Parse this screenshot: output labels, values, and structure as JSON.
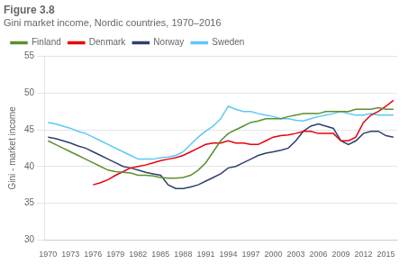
{
  "chart_data": {
    "type": "line",
    "title": "Figure 3.8",
    "subtitle": "Gini market income, Nordic countries, 1970–2016",
    "ylabel": "Gini - market income",
    "xlim": [
      1969.5,
      2016.5
    ],
    "xticks": [
      1970,
      1973,
      1976,
      1979,
      1982,
      1985,
      1988,
      1991,
      1994,
      1997,
      2000,
      2003,
      2006,
      2009,
      2012,
      2015
    ],
    "ylim": [
      30,
      55
    ],
    "yticks": [
      30,
      35,
      40,
      45,
      50,
      55
    ],
    "grid": true,
    "legend": "upper left",
    "series": [
      {
        "name": "Finland",
        "color": "#5a8f2f",
        "x": [
          1970,
          1971,
          1972,
          1973,
          1974,
          1975,
          1976,
          1977,
          1978,
          1979,
          1980,
          1981,
          1982,
          1983,
          1984,
          1985,
          1986,
          1987,
          1988,
          1989,
          1990,
          1991,
          1992,
          1993,
          1994,
          1995,
          1996,
          1997,
          1998,
          1999,
          2000,
          2001,
          2002,
          2003,
          2004,
          2005,
          2006,
          2007,
          2008,
          2009,
          2010,
          2011,
          2012,
          2013,
          2014,
          2015,
          2016
        ],
        "values": [
          43.5,
          43.0,
          42.5,
          42.0,
          41.5,
          41.0,
          40.5,
          40.0,
          39.5,
          39.3,
          39.2,
          39.1,
          38.8,
          38.8,
          38.7,
          38.5,
          38.4,
          38.4,
          38.5,
          38.8,
          39.5,
          40.5,
          42.0,
          43.5,
          44.5,
          45.0,
          45.5,
          46.0,
          46.2,
          46.5,
          46.5,
          46.5,
          46.8,
          47.0,
          47.2,
          47.2,
          47.2,
          47.5,
          47.5,
          47.5,
          47.5,
          47.8,
          47.8,
          47.8,
          48.0,
          47.8,
          47.8
        ]
      },
      {
        "name": "Denmark",
        "color": "#e8000b",
        "x": [
          1976,
          1977,
          1978,
          1979,
          1980,
          1981,
          1982,
          1983,
          1984,
          1985,
          1986,
          1987,
          1988,
          1989,
          1990,
          1991,
          1992,
          1993,
          1994,
          1995,
          1996,
          1997,
          1998,
          1999,
          2000,
          2001,
          2002,
          2003,
          2004,
          2005,
          2006,
          2007,
          2008,
          2009,
          2010,
          2011,
          2012,
          2013,
          2014,
          2015,
          2016
        ],
        "values": [
          37.5,
          37.8,
          38.2,
          38.8,
          39.3,
          39.8,
          40.0,
          40.2,
          40.5,
          40.8,
          41.0,
          41.2,
          41.5,
          42.0,
          42.5,
          43.0,
          43.2,
          43.2,
          43.5,
          43.2,
          43.2,
          43.0,
          43.0,
          43.5,
          44.0,
          44.2,
          44.3,
          44.5,
          44.8,
          44.8,
          44.5,
          44.5,
          44.5,
          43.5,
          43.5,
          44.0,
          46.0,
          47.0,
          47.5,
          48.2,
          49.0
        ]
      },
      {
        "name": "Norway",
        "color": "#2f3f6e",
        "x": [
          1970,
          1971,
          1972,
          1973,
          1974,
          1975,
          1976,
          1977,
          1978,
          1979,
          1980,
          1981,
          1982,
          1983,
          1984,
          1985,
          1986,
          1987,
          1988,
          1989,
          1990,
          1991,
          1992,
          1993,
          1994,
          1995,
          1996,
          1997,
          1998,
          1999,
          2000,
          2001,
          2002,
          2003,
          2004,
          2005,
          2006,
          2007,
          2008,
          2009,
          2010,
          2011,
          2012,
          2013,
          2014,
          2015,
          2016
        ],
        "values": [
          44.0,
          43.8,
          43.5,
          43.2,
          42.8,
          42.5,
          42.0,
          41.5,
          41.0,
          40.5,
          40.0,
          39.8,
          39.5,
          39.2,
          39.0,
          38.8,
          37.5,
          37.0,
          37.0,
          37.2,
          37.5,
          38.0,
          38.5,
          39.0,
          39.8,
          40.0,
          40.5,
          41.0,
          41.5,
          41.8,
          42.0,
          42.2,
          42.5,
          43.5,
          44.8,
          45.5,
          45.8,
          45.5,
          45.2,
          43.5,
          43.0,
          43.5,
          44.5,
          44.8,
          44.8,
          44.2,
          44.0
        ]
      },
      {
        "name": "Sweden",
        "color": "#5bc8f5",
        "x": [
          1970,
          1971,
          1972,
          1973,
          1974,
          1975,
          1976,
          1977,
          1978,
          1979,
          1980,
          1981,
          1982,
          1983,
          1984,
          1985,
          1986,
          1987,
          1988,
          1989,
          1990,
          1991,
          1992,
          1993,
          1994,
          1995,
          1996,
          1997,
          1998,
          1999,
          2000,
          2001,
          2002,
          2003,
          2004,
          2005,
          2006,
          2007,
          2008,
          2009,
          2010,
          2011,
          2012,
          2013,
          2014,
          2015,
          2016
        ],
        "values": [
          46.0,
          45.8,
          45.5,
          45.2,
          44.8,
          44.5,
          44.0,
          43.5,
          43.0,
          42.5,
          42.0,
          41.5,
          41.0,
          41.0,
          41.0,
          41.2,
          41.3,
          41.5,
          42.0,
          43.0,
          44.0,
          44.8,
          45.5,
          46.5,
          48.2,
          47.8,
          47.5,
          47.5,
          47.2,
          47.0,
          46.8,
          46.5,
          46.5,
          46.3,
          46.2,
          46.5,
          46.8,
          47.0,
          47.2,
          47.5,
          47.2,
          47.0,
          47.0,
          47.2,
          47.0,
          47.0,
          47.0
        ]
      }
    ]
  }
}
